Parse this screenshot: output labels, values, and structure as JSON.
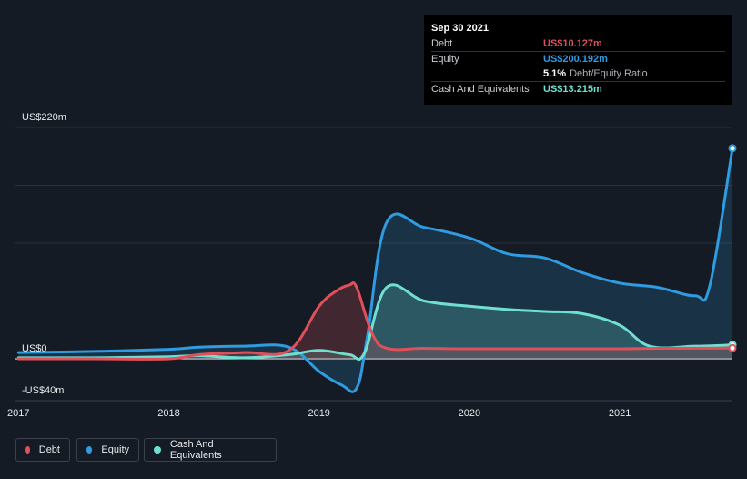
{
  "tooltip": {
    "date": "Sep 30 2021",
    "debt_label": "Debt",
    "debt_value": "US$10.127m",
    "equity_label": "Equity",
    "equity_value": "US$200.192m",
    "ratio_value": "5.1%",
    "ratio_label": "Debt/Equity Ratio",
    "cash_label": "Cash And Equivalents",
    "cash_value": "US$13.215m"
  },
  "legend": {
    "debt": "Debt",
    "equity": "Equity",
    "cash": "Cash And Equivalents"
  },
  "colors": {
    "debt": "#e0505a",
    "equity": "#2f9be0",
    "cash": "#6fe0cf",
    "background": "#151b24"
  },
  "chart_data": {
    "type": "area",
    "ylim": [
      -40,
      220
    ],
    "y_tick_labels": [
      {
        "value": 220,
        "label": "US$220m"
      },
      {
        "value": 0,
        "label": "US$0"
      },
      {
        "value": -40,
        "label": "-US$40m"
      }
    ],
    "x_ticks": [
      2017,
      2018,
      2019,
      2020,
      2021
    ],
    "xlim": [
      2016.98,
      2021.75
    ],
    "series": [
      {
        "name": "Debt",
        "key": "debt",
        "points": [
          [
            2017.0,
            0
          ],
          [
            2017.5,
            0
          ],
          [
            2018.0,
            0
          ],
          [
            2018.2,
            4
          ],
          [
            2018.5,
            6
          ],
          [
            2018.8,
            8
          ],
          [
            2019.0,
            50
          ],
          [
            2019.12,
            65
          ],
          [
            2019.2,
            70
          ],
          [
            2019.25,
            68
          ],
          [
            2019.35,
            25
          ],
          [
            2019.45,
            10
          ],
          [
            2019.7,
            10
          ],
          [
            2020.0,
            9.5
          ],
          [
            2020.5,
            9.5
          ],
          [
            2021.0,
            9.5
          ],
          [
            2021.25,
            10
          ],
          [
            2021.75,
            10.127
          ]
        ]
      },
      {
        "name": "Equity",
        "key": "equity",
        "points": [
          [
            2017.0,
            6
          ],
          [
            2017.5,
            7
          ],
          [
            2018.0,
            9
          ],
          [
            2018.2,
            11
          ],
          [
            2018.5,
            12
          ],
          [
            2018.8,
            11
          ],
          [
            2019.0,
            -12
          ],
          [
            2019.15,
            -25
          ],
          [
            2019.25,
            -28
          ],
          [
            2019.32,
            20
          ],
          [
            2019.45,
            130
          ],
          [
            2019.7,
            125
          ],
          [
            2020.0,
            115
          ],
          [
            2020.25,
            100
          ],
          [
            2020.5,
            96
          ],
          [
            2020.75,
            82
          ],
          [
            2021.0,
            72
          ],
          [
            2021.25,
            68
          ],
          [
            2021.5,
            60
          ],
          [
            2021.6,
            70
          ],
          [
            2021.75,
            200.192
          ]
        ]
      },
      {
        "name": "Cash And Equivalents",
        "key": "cash",
        "points": [
          [
            2017.0,
            1
          ],
          [
            2017.5,
            1
          ],
          [
            2018.0,
            2
          ],
          [
            2018.2,
            3
          ],
          [
            2018.5,
            1
          ],
          [
            2018.8,
            4
          ],
          [
            2019.0,
            8
          ],
          [
            2019.2,
            4
          ],
          [
            2019.3,
            5
          ],
          [
            2019.45,
            68
          ],
          [
            2019.7,
            55
          ],
          [
            2020.0,
            50
          ],
          [
            2020.25,
            47
          ],
          [
            2020.5,
            45
          ],
          [
            2020.75,
            43
          ],
          [
            2021.0,
            32
          ],
          [
            2021.2,
            12
          ],
          [
            2021.5,
            12
          ],
          [
            2021.75,
            13.215
          ]
        ]
      }
    ]
  }
}
